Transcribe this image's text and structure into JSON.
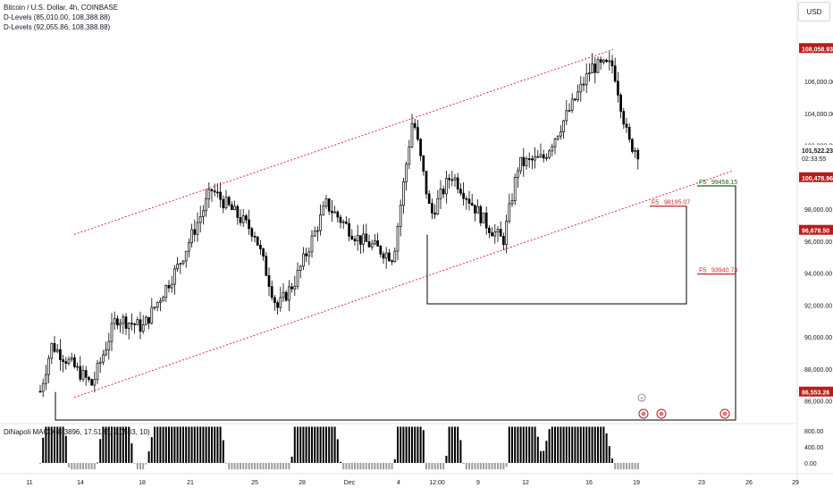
{
  "header": {
    "symbol_line": "Bitcoin / U.S. Dollar, 4h, COINBASE",
    "indicator1": "D-Levels (85,010.00, 108,388.88)",
    "indicator2": "D-Levels (92,055.86, 108,388.88)"
  },
  "currency_button": "USD",
  "macd_label": "DiNapoli MACD (8.3896, 17.5185, 9.0503, 10)",
  "colors": {
    "candle": "#000000",
    "channel": "#e0303a",
    "level_green": "#1b5e20",
    "level_red": "#c62828",
    "badge_red": "#b71c1c",
    "histogram_up": "#000000",
    "histogram_down": "#9e9e9e"
  },
  "badges": {
    "high": "108,058.93",
    "current": "101,522.23",
    "countdown": "02:33:55",
    "last": "100,478.96",
    "mid": "96,678.50",
    "low": "86,553.26"
  },
  "fib_labels": [
    {
      "tag": "F5",
      "value": "99458.15"
    },
    {
      "tag": "F5",
      "value": "98195.07"
    },
    {
      "tag": "F5",
      "value": "93940.73"
    }
  ],
  "chart_data": {
    "type": "candlestick",
    "symbol": "Bitcoin / U.S. Dollar",
    "timeframe": "4h",
    "exchange": "COINBASE",
    "currency": "USD",
    "price_axis": {
      "range": [
        84800,
        110200
      ],
      "ticks": [
        "108,000.00",
        "106,000.00",
        "104,000.00",
        "102,000.00",
        "100,000.00",
        "98,000.00",
        "96,000.00",
        "94,000.00",
        "92,000.00",
        "90,000.00",
        "88,000.00",
        "86,000.00"
      ]
    },
    "time_axis": {
      "ticks": [
        "11",
        "14",
        "18",
        "21",
        "25",
        "28",
        "Dec",
        "4",
        "12:00",
        "9",
        "12",
        "16",
        "19",
        "23",
        "26",
        "29"
      ]
    },
    "key_points": [
      {
        "label": "Nov 11",
        "price": 86600
      },
      {
        "label": "Nov 13",
        "price": 89500
      },
      {
        "label": "Nov 14",
        "price": 87000
      },
      {
        "label": "Nov 16",
        "price": 91200
      },
      {
        "label": "Nov 18",
        "price": 90600
      },
      {
        "label": "Nov 20",
        "price": 94500
      },
      {
        "label": "Nov 22",
        "price": 99200
      },
      {
        "label": "Nov 25",
        "price": 96500
      },
      {
        "label": "Nov 26",
        "price": 91800
      },
      {
        "label": "Nov 27",
        "price": 93500
      },
      {
        "label": "Nov 29",
        "price": 98300
      },
      {
        "label": "Dec 2",
        "price": 96200
      },
      {
        "label": "Dec 4",
        "price": 95000
      },
      {
        "label": "Dec 5",
        "price": 103800
      },
      {
        "label": "Dec 6",
        "price": 97600
      },
      {
        "label": "Dec 7",
        "price": 100200
      },
      {
        "label": "Dec 9",
        "price": 97000
      },
      {
        "label": "Dec 10",
        "price": 96000
      },
      {
        "label": "Dec 11",
        "price": 100800
      },
      {
        "label": "Dec 13",
        "price": 101200
      },
      {
        "label": "Dec 15",
        "price": 104500
      },
      {
        "label": "Dec 16",
        "price": 106900
      },
      {
        "label": "Dec 17",
        "price": 107000
      },
      {
        "label": "Dec 18",
        "price": 102200
      },
      {
        "label": "Dec 19",
        "price": 101522
      }
    ],
    "channel": {
      "upper": [
        {
          "label": "Nov 14",
          "price": 96800
        },
        {
          "label": "Dec 17",
          "price": 108000
        }
      ],
      "lower": [
        {
          "label": "Nov 14",
          "price": 86600
        },
        {
          "label": "Dec 24",
          "price": 100400
        }
      ]
    },
    "levels": [
      {
        "tag": "F5",
        "price": 99458.15
      },
      {
        "tag": "F5",
        "price": 98195.07
      },
      {
        "tag": "F5",
        "price": 93940.73
      }
    ],
    "macd_axis": {
      "ticks": [
        "800.00",
        "400.00",
        "0.00"
      ]
    },
    "grid": false
  }
}
